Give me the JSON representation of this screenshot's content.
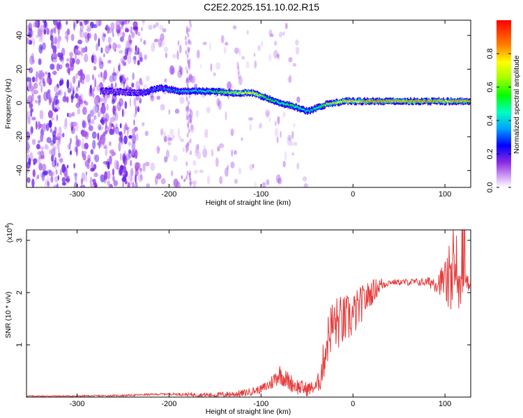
{
  "title": "C2E2.2025.151.10.02.R15",
  "chart_data": [
    {
      "type": "heatmap",
      "name": "spectrogram",
      "xlabel": "Height of straight line (km)",
      "ylabel": "Frequency (Hz)",
      "xlim": [
        -355,
        128
      ],
      "ylim": [
        -50,
        49
      ],
      "xticks": [
        "-300",
        "-200",
        "-100",
        "0",
        "100"
      ],
      "xtick_values": [
        -300,
        -200,
        -100,
        0,
        100
      ],
      "yticks": [
        "-40",
        "-20",
        "0",
        "20",
        "40"
      ],
      "ytick_values": [
        -40,
        -20,
        0,
        20,
        40
      ],
      "ridge": {
        "x": [
          -270,
          -230,
          -210,
          -190,
          -160,
          -130,
          -110,
          -95,
          -80,
          -65,
          -50,
          -40,
          -30,
          -20,
          -10,
          0,
          20,
          50,
          80,
          100,
          128
        ],
        "y": [
          7,
          6,
          9,
          7,
          7,
          6,
          6,
          3,
          0,
          -2,
          -5,
          -3,
          -1,
          0,
          1,
          1,
          1,
          1,
          1,
          1,
          1
        ],
        "amplitude": [
          0.2,
          0.25,
          0.35,
          0.4,
          0.5,
          0.75,
          0.85,
          0.6,
          0.55,
          0.6,
          0.5,
          0.55,
          0.7,
          0.75,
          0.9,
          0.85,
          0.95,
          0.9,
          0.95,
          0.9,
          0.95
        ]
      },
      "colorbar": {
        "label": "Normalized spectral amplitude",
        "range": [
          0,
          1
        ],
        "ticks": [
          "0.0",
          "0.2",
          "0.4",
          "0.6",
          "0.8"
        ],
        "tick_values": [
          0,
          0.2,
          0.4,
          0.6,
          0.8
        ]
      }
    },
    {
      "type": "line",
      "name": "snr",
      "xlabel": "Height of straight line (km)",
      "ylabel": "SNR (10 * v/v)",
      "yscale_note": "(x10",
      "yscale_exp": "4",
      "yscale_close": ")",
      "xlim": [
        -355,
        128
      ],
      "ylim": [
        0,
        3.2
      ],
      "xticks": [
        "-300",
        "-200",
        "-100",
        "0",
        "100"
      ],
      "xtick_values": [
        -300,
        -200,
        -100,
        0,
        100
      ],
      "yticks": [
        "1",
        "2",
        "3"
      ],
      "ytick_values": [
        1,
        2,
        3
      ],
      "color": "#e53a3a",
      "trend": {
        "x": [
          -355,
          -300,
          -250,
          -220,
          -200,
          -180,
          -150,
          -120,
          -100,
          -90,
          -80,
          -70,
          -60,
          -50,
          -40,
          -35,
          -30,
          -25,
          -20,
          -10,
          0,
          10,
          20,
          30,
          40,
          60,
          80,
          95,
          100,
          105,
          110,
          115,
          120,
          128
        ],
        "y": [
          0.02,
          0.02,
          0.03,
          0.05,
          0.06,
          0.05,
          0.04,
          0.07,
          0.15,
          0.25,
          0.45,
          0.3,
          0.2,
          0.15,
          0.2,
          0.4,
          0.9,
          1.3,
          1.4,
          1.45,
          1.55,
          1.8,
          2.0,
          2.15,
          2.2,
          2.2,
          2.2,
          2.2,
          2.25,
          2.1,
          2.3,
          2.2,
          2.2,
          2.15
        ]
      },
      "noise": {
        "x": [
          -355,
          -200,
          -100,
          -80,
          -40,
          -30,
          -20,
          0,
          20,
          40,
          80,
          95,
          105,
          115,
          128
        ],
        "amplitude": [
          0.01,
          0.02,
          0.08,
          0.2,
          0.12,
          0.45,
          0.55,
          0.45,
          0.25,
          0.05,
          0.08,
          0.25,
          0.6,
          0.5,
          0.05
        ]
      }
    }
  ]
}
